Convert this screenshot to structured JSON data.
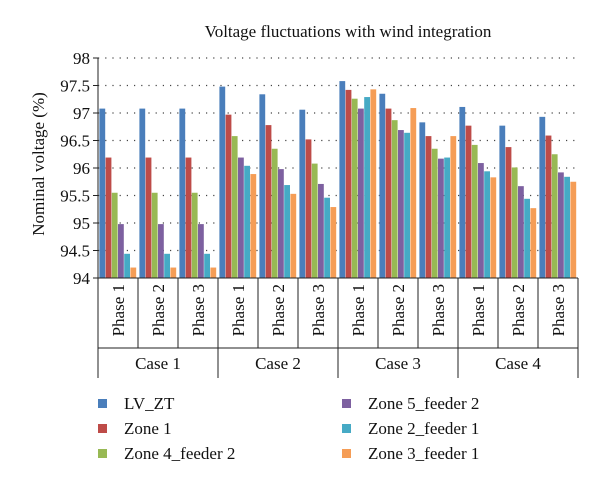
{
  "chart_data": {
    "type": "bar",
    "title": "Voltage fluctuations with wind integration",
    "ylabel": "Nominal voltage (%)",
    "xlabel": "",
    "ylim": [
      94,
      98
    ],
    "yticks": [
      "94",
      "94.5",
      "95",
      "95.5",
      "96",
      "96.5",
      "97",
      "97.5",
      "98"
    ],
    "ytick_values": [
      94,
      94.5,
      95,
      95.5,
      96,
      96.5,
      97,
      97.5,
      98
    ],
    "grid": "dotted horizontal",
    "legend_position": "bottom",
    "groups": [
      "Case 1",
      "Case 2",
      "Case 3",
      "Case 4"
    ],
    "categories": [
      "Phase 1",
      "Phase 2",
      "Phase 3",
      "Phase 1",
      "Phase 2",
      "Phase 3",
      "Phase 1",
      "Phase 2",
      "Phase 3",
      "Phase 1",
      "Phase 2",
      "Phase 3"
    ],
    "series": [
      {
        "name": "LV_ZT",
        "color": "#4a7ebb",
        "values": [
          97.08,
          97.08,
          97.08,
          97.48,
          97.34,
          97.06,
          97.58,
          97.35,
          96.83,
          97.11,
          96.77,
          96.93
        ]
      },
      {
        "name": "Zone 1",
        "color": "#be4b48",
        "values": [
          96.19,
          96.19,
          96.19,
          96.97,
          96.78,
          96.52,
          97.42,
          97.08,
          96.58,
          96.77,
          96.38,
          96.59
        ]
      },
      {
        "name": "Zone 4_feeder 2",
        "color": "#98b954",
        "values": [
          95.55,
          95.55,
          95.55,
          96.58,
          96.35,
          96.08,
          97.26,
          96.87,
          96.35,
          96.42,
          96.01,
          96.25
        ]
      },
      {
        "name": "Zone 5_feeder 2",
        "color": "#7d60a0",
        "values": [
          94.98,
          94.98,
          94.98,
          96.19,
          95.98,
          95.71,
          97.08,
          96.69,
          96.17,
          96.09,
          95.67,
          95.92
        ]
      },
      {
        "name": "Zone 2_feeder 1",
        "color": "#46aac5",
        "values": [
          94.44,
          94.44,
          94.44,
          96.04,
          95.69,
          95.46,
          97.29,
          96.64,
          96.19,
          95.94,
          95.44,
          95.84
        ]
      },
      {
        "name": "Zone 3_feeder 1",
        "color": "#f59d56",
        "values": [
          94.19,
          94.19,
          94.19,
          95.89,
          95.53,
          95.29,
          97.43,
          97.09,
          96.58,
          95.83,
          95.27,
          95.75
        ]
      }
    ],
    "legend_order": [
      "LV_ZT",
      "Zone 5_feeder 2",
      "Zone 1",
      "Zone 2_feeder 1",
      "Zone 4_feeder 2",
      "Zone 3_feeder 1"
    ]
  }
}
